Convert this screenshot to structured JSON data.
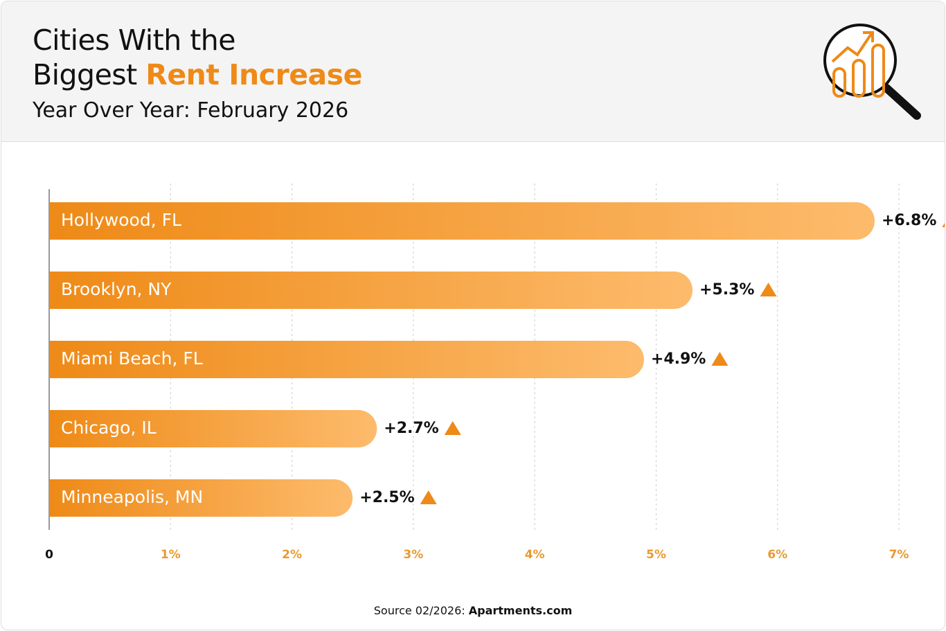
{
  "header": {
    "title_line1": "Cities With the",
    "title_line2": "Biggest",
    "title_highlight": "Rent Increase",
    "subtitle": "Year Over Year: February 2026"
  },
  "chart_data": {
    "type": "hbar",
    "categories": [
      "Hollywood, FL",
      "Brooklyn, NY",
      "Miami Beach, FL",
      "Chicago, IL",
      "Minneapolis, MN"
    ],
    "values": [
      6.8,
      5.3,
      4.9,
      2.7,
      2.5
    ],
    "value_labels": [
      "+6.8%",
      "+5.3%",
      "+4.9%",
      "+2.7%",
      "+2.5%"
    ],
    "colors": [
      "#ee8a17",
      "#fdbb6c"
    ],
    "xlim": [
      0,
      7
    ],
    "xticks": [
      0,
      {
        "value": 1,
        "label": "1%"
      },
      {
        "value": 2,
        "label": "2%"
      },
      {
        "value": 3,
        "label": "3%"
      },
      {
        "value": 4,
        "label": "4%"
      },
      {
        "value": 5,
        "label": "5%"
      },
      {
        "value": 6,
        "label": "6%"
      },
      {
        "value": 7,
        "label": "7%"
      }
    ],
    "grid": true
  },
  "footer": {
    "source": "Source 02/2026:",
    "brand": "Apartments.com"
  }
}
